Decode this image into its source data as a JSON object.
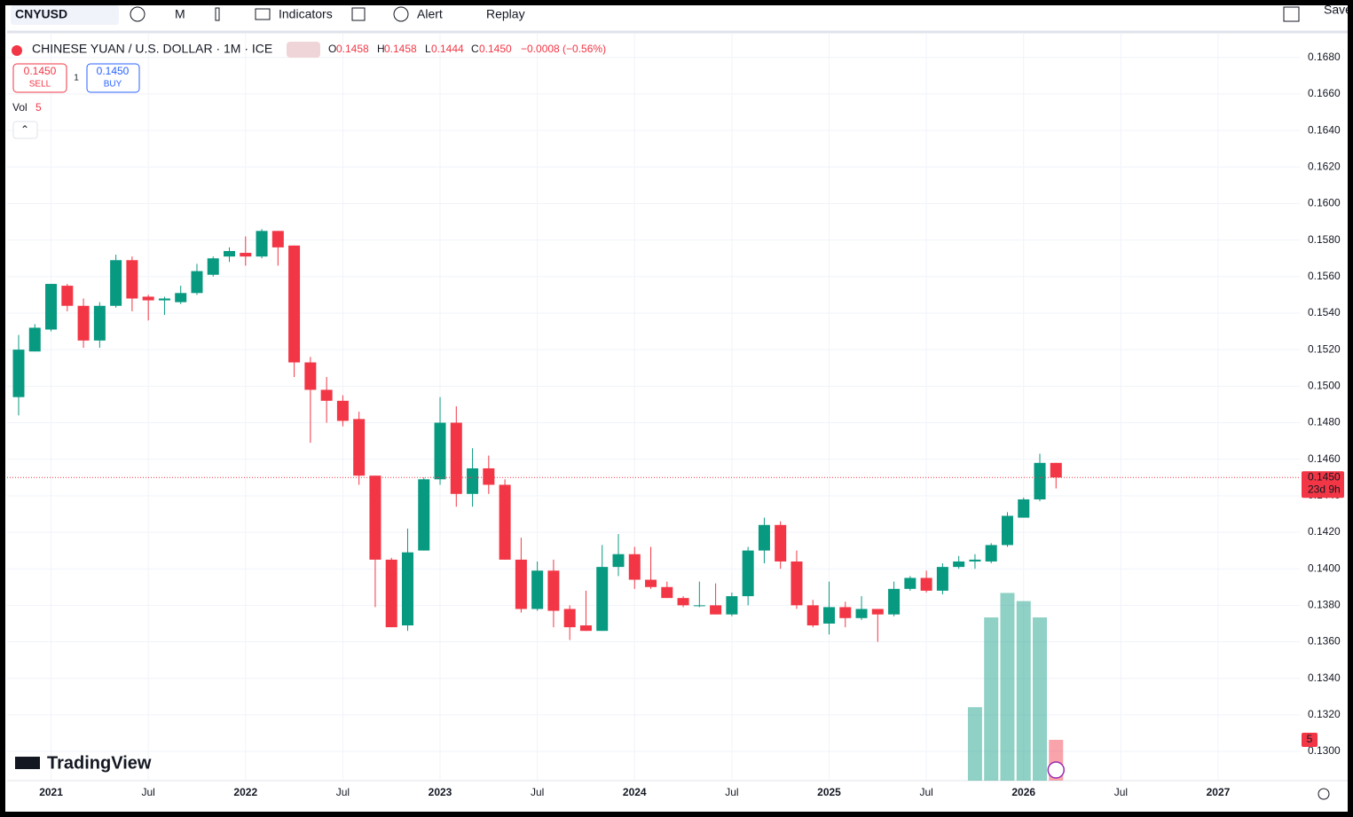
{
  "toolbar": {
    "symbol": "CNYUSD",
    "interval": "M",
    "indicators": "Indicators",
    "alert": "Alert",
    "replay": "Replay",
    "save": "Save"
  },
  "legend": {
    "title": "CHINESE YUAN / U.S. DOLLAR · 1M · ICE",
    "open_label": "O",
    "open": "0.1458",
    "high_label": "H",
    "high": "0.1458",
    "low_label": "L",
    "low": "0.1444",
    "close_label": "C",
    "close": "0.1450",
    "change": "−0.0008 (−0.56%)",
    "volume_label": "Vol"
  },
  "trade": {
    "sell_price": "0.1450",
    "sell": "SELL",
    "quantity": "1",
    "buy_price": "0.1450",
    "buy": "BUY"
  },
  "countdown": "23d 9h",
  "branding": "TradingView",
  "chart_data": {
    "type": "candlestick",
    "categories": [
      null,
      null,
      "2021",
      null,
      null,
      null,
      null,
      null,
      "Jul",
      null,
      null,
      null,
      null,
      null,
      "2022",
      null,
      null,
      null,
      null,
      null,
      "Jul",
      null,
      null,
      null,
      null,
      null,
      "2023",
      null,
      null,
      null,
      null,
      null,
      "Jul",
      null,
      null,
      null,
      null,
      null,
      "2024",
      null,
      null,
      null,
      null,
      null,
      "Jul",
      null,
      null,
      null,
      null,
      null,
      "2025",
      null,
      null,
      null,
      null,
      null,
      "Jul",
      null,
      null,
      null,
      null,
      null,
      "2026",
      null,
      null,
      null,
      null,
      null,
      "Jul",
      null,
      null,
      null,
      null,
      null,
      "2027"
    ],
    "open": [
      0.1494,
      0.1519,
      0.1531,
      0.1555,
      0.1544,
      0.1525,
      0.1544,
      0.1569,
      0.1549,
      0.1547,
      0.1546,
      0.1551,
      0.1561,
      0.1571,
      0.1573,
      0.1571,
      0.1585,
      0.1577,
      0.1513,
      0.1498,
      0.1492,
      0.1482,
      0.1451,
      0.1405,
      0.1369,
      0.141,
      0.1449,
      0.148,
      0.1441,
      0.1455,
      0.1446,
      0.1405,
      0.1378,
      0.1399,
      0.1378,
      0.1369,
      0.1366,
      0.1401,
      0.1408,
      0.1394,
      0.139,
      0.1384,
      0.138,
      0.138,
      0.1375,
      0.1385,
      0.141,
      0.1424,
      0.1404,
      0.138,
      0.137,
      0.1379,
      0.1373,
      0.1378,
      0.1375,
      0.1389,
      0.1395,
      0.1388,
      0.1401,
      0.1404,
      0.1404,
      0.1413,
      0.1428,
      0.1438,
      0.1458,
      null,
      null,
      null,
      null,
      null,
      null,
      null,
      null,
      null,
      null
    ],
    "high": [
      0.1528,
      0.1534,
      0.1556,
      0.1556,
      0.1548,
      0.1546,
      0.1572,
      0.1571,
      0.155,
      0.1549,
      0.1555,
      0.1567,
      0.1571,
      0.1576,
      0.1582,
      0.1586,
      0.1585,
      0.1577,
      0.1516,
      0.1505,
      0.1495,
      0.1486,
      0.1451,
      0.1406,
      0.1422,
      0.145,
      0.1494,
      0.1489,
      0.1466,
      0.1462,
      0.1449,
      0.1417,
      0.1404,
      0.1405,
      0.138,
      0.1388,
      0.1413,
      0.1419,
      0.1412,
      0.1412,
      0.1393,
      0.1385,
      0.1393,
      0.1392,
      0.1387,
      0.1412,
      0.1428,
      0.1426,
      0.141,
      0.1383,
      0.1393,
      0.1382,
      0.1385,
      0.1378,
      0.1393,
      0.1396,
      0.1399,
      0.1403,
      0.1407,
      0.1408,
      0.1414,
      0.1431,
      0.1439,
      0.1463,
      0.1458,
      null,
      null,
      null,
      null,
      null,
      null,
      null,
      null,
      null,
      null
    ],
    "low": [
      0.1484,
      0.1519,
      0.153,
      0.1541,
      0.1521,
      0.1521,
      0.1543,
      0.1541,
      0.1536,
      0.1539,
      0.1545,
      0.155,
      0.156,
      0.1568,
      0.1566,
      0.157,
      0.1566,
      0.1505,
      0.1469,
      0.148,
      0.1478,
      0.1446,
      0.1379,
      0.1368,
      0.1366,
      0.141,
      0.1446,
      0.1434,
      0.1434,
      0.1441,
      0.1405,
      0.1376,
      0.1377,
      0.1368,
      0.1361,
      0.1366,
      0.1366,
      0.1396,
      0.1389,
      0.1389,
      0.1384,
      0.1379,
      0.1379,
      0.1375,
      0.1374,
      0.138,
      0.1403,
      0.14,
      0.1378,
      0.1368,
      0.1364,
      0.1368,
      0.1372,
      0.136,
      0.1374,
      0.1388,
      0.1387,
      0.1386,
      0.14,
      0.14,
      0.1403,
      0.1412,
      0.1428,
      0.1437,
      0.1444,
      null,
      null,
      null,
      null,
      null,
      null,
      null,
      null,
      null,
      null
    ],
    "close": [
      0.152,
      0.1532,
      0.1556,
      0.1544,
      0.1525,
      0.1544,
      0.1569,
      0.1548,
      0.1547,
      0.1548,
      0.1551,
      0.1563,
      0.157,
      0.1574,
      0.1571,
      0.1585,
      0.1576,
      0.1513,
      0.1498,
      0.1492,
      0.1481,
      0.1451,
      0.1405,
      0.1368,
      0.1409,
      0.1449,
      0.148,
      0.1441,
      0.1455,
      0.1446,
      0.1405,
      0.1378,
      0.1399,
      0.1377,
      0.1368,
      0.1366,
      0.1401,
      0.1408,
      0.1394,
      0.139,
      0.1384,
      0.138,
      0.138,
      0.1375,
      0.1385,
      0.141,
      0.1424,
      0.1404,
      0.138,
      0.1369,
      0.1379,
      0.1373,
      0.1378,
      0.1375,
      0.1389,
      0.1395,
      0.1388,
      0.1401,
      0.1404,
      0.1405,
      0.1413,
      0.1429,
      0.1438,
      0.1458,
      0.145,
      null,
      null,
      null,
      null,
      null,
      null,
      null,
      null,
      null,
      null
    ],
    "volume": [
      null,
      null,
      null,
      null,
      null,
      null,
      null,
      null,
      null,
      null,
      null,
      null,
      null,
      null,
      null,
      null,
      null,
      null,
      null,
      null,
      null,
      null,
      null,
      null,
      null,
      null,
      null,
      null,
      null,
      null,
      null,
      null,
      null,
      null,
      null,
      null,
      null,
      null,
      null,
      null,
      null,
      null,
      null,
      null,
      null,
      null,
      null,
      null,
      null,
      null,
      null,
      null,
      null,
      null,
      null,
      null,
      null,
      null,
      null,
      9,
      20,
      23,
      22,
      20,
      5,
      null,
      null,
      null,
      null,
      null,
      null,
      null,
      null,
      null,
      null
    ],
    "up_color": "#089981",
    "down_color": "#f23645",
    "ylim": [
      0.1284,
      0.1693
    ],
    "yticks": [
      {
        "value": 0.13,
        "label": "0.1300"
      },
      {
        "value": 0.132,
        "label": "0.1320"
      },
      {
        "value": 0.134,
        "label": "0.1340"
      },
      {
        "value": 0.136,
        "label": "0.1360"
      },
      {
        "value": 0.138,
        "label": "0.1380"
      },
      {
        "value": 0.14,
        "label": "0.1400"
      },
      {
        "value": 0.142,
        "label": "0.1420"
      },
      {
        "value": 0.144,
        "label": "0.1440"
      },
      {
        "value": 0.146,
        "label": "0.1460"
      },
      {
        "value": 0.148,
        "label": "0.1480"
      },
      {
        "value": 0.15,
        "label": "0.1500"
      },
      {
        "value": 0.152,
        "label": "0.1520"
      },
      {
        "value": 0.154,
        "label": "0.1540"
      },
      {
        "value": 0.156,
        "label": "0.1560"
      },
      {
        "value": 0.158,
        "label": "0.1580"
      },
      {
        "value": 0.16,
        "label": "0.1600"
      },
      {
        "value": 0.162,
        "label": "0.1620"
      },
      {
        "value": 0.164,
        "label": "0.1640"
      },
      {
        "value": 0.166,
        "label": "0.1660"
      },
      {
        "value": 0.168,
        "label": "0.1680"
      }
    ],
    "grid": true
  }
}
